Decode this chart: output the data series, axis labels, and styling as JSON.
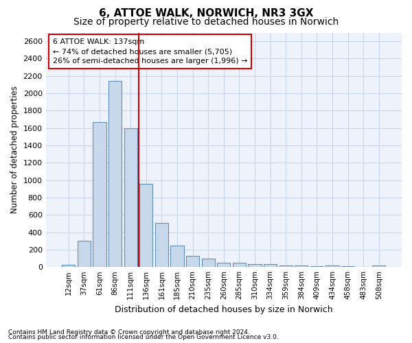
{
  "title": "6, ATTOE WALK, NORWICH, NR3 3GX",
  "subtitle": "Size of property relative to detached houses in Norwich",
  "xlabel": "Distribution of detached houses by size in Norwich",
  "ylabel": "Number of detached properties",
  "footnote1": "Contains HM Land Registry data © Crown copyright and database right 2024.",
  "footnote2": "Contains public sector information licensed under the Open Government Licence v3.0.",
  "annotation_line1": "6 ATTOE WALK: 137sqm",
  "annotation_line2": "← 74% of detached houses are smaller (5,705)",
  "annotation_line3": "26% of semi-detached houses are larger (1,996) →",
  "bar_color": "#c8d8eb",
  "bar_edge_color": "#6090b8",
  "vline_color": "#cc0000",
  "vline_x_idx": 5,
  "categories": [
    "12sqm",
    "37sqm",
    "61sqm",
    "86sqm",
    "111sqm",
    "136sqm",
    "161sqm",
    "185sqm",
    "210sqm",
    "235sqm",
    "260sqm",
    "285sqm",
    "310sqm",
    "334sqm",
    "359sqm",
    "384sqm",
    "409sqm",
    "434sqm",
    "458sqm",
    "483sqm",
    "508sqm"
  ],
  "values": [
    22,
    300,
    1670,
    2140,
    1600,
    960,
    505,
    250,
    125,
    100,
    50,
    50,
    30,
    35,
    15,
    20,
    12,
    18,
    10,
    5,
    20
  ],
  "ylim": [
    0,
    2700
  ],
  "yticks": [
    0,
    200,
    400,
    600,
    800,
    1000,
    1200,
    1400,
    1600,
    1800,
    2000,
    2200,
    2400,
    2600
  ],
  "grid_color": "#c8d4e8",
  "bg_color": "#eef2fa",
  "title_fontsize": 11,
  "subtitle_fontsize": 10,
  "xlabel_fontsize": 9,
  "ylabel_fontsize": 8.5,
  "tick_fontsize": 8,
  "xtick_fontsize": 7.5,
  "annot_fontsize": 8,
  "footnote_fontsize": 6.5
}
